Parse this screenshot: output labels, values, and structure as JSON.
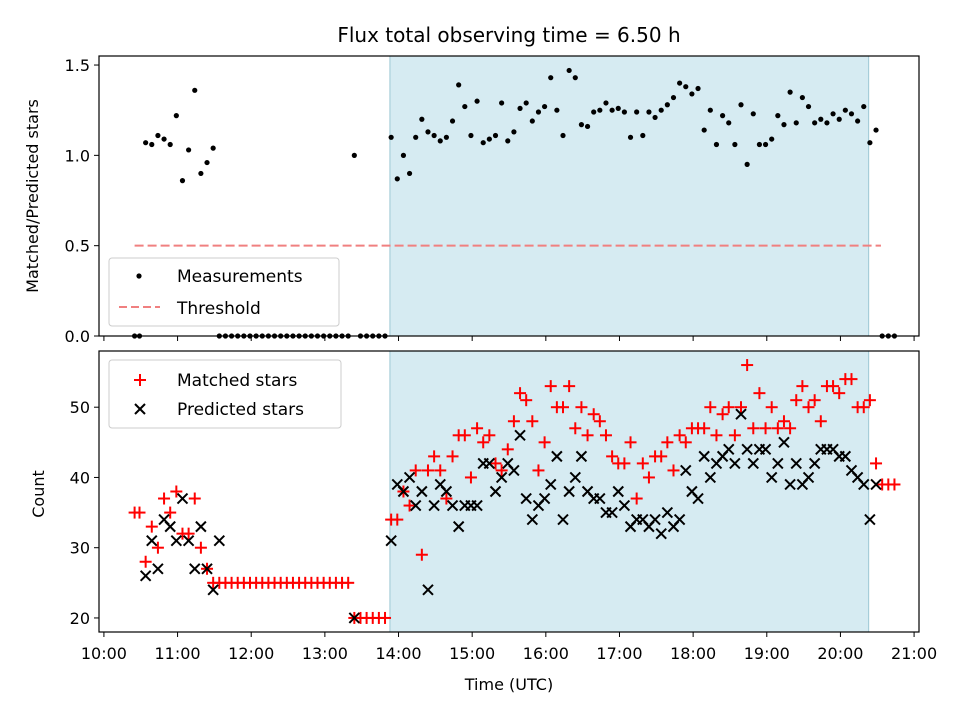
{
  "chart_data": [
    {
      "type": "scatter",
      "title": "Flux total observing time = 6.50 h",
      "ylabel": "Matched/Predicted stars",
      "xlabel": "",
      "xlim": [
        "10:00",
        "21:00"
      ],
      "ylim": [
        0,
        1.55
      ],
      "yticks": [
        "0.0",
        "0.5",
        "1.0",
        "1.5"
      ],
      "ytick_values": [
        0,
        0.5,
        1.0,
        1.5
      ],
      "shaded_region": [
        "13:53",
        "20:23"
      ],
      "legend": {
        "placement": "lower-left",
        "entries": [
          "Measurements",
          "Threshold"
        ]
      },
      "threshold": {
        "name": "Threshold",
        "y": 0.5,
        "x_range": [
          "10:25",
          "20:33"
        ],
        "color": "#f08080"
      },
      "series": [
        {
          "name": "Measurements",
          "color": "#000000",
          "x": [
            "10:25",
            "10:29",
            "10:34",
            "10:39",
            "10:44",
            "10:49",
            "10:54",
            "10:59",
            "11:04",
            "11:09",
            "11:14",
            "11:19",
            "11:24",
            "11:29",
            "11:34",
            "11:39",
            "11:44",
            "11:49",
            "11:54",
            "11:59",
            "12:04",
            "12:09",
            "12:14",
            "12:19",
            "12:24",
            "12:29",
            "12:34",
            "12:39",
            "12:44",
            "12:49",
            "12:54",
            "12:59",
            "13:04",
            "13:09",
            "13:14",
            "13:19",
            "13:24",
            "13:29",
            "13:34",
            "13:39",
            "13:44",
            "13:49",
            "13:54",
            "13:59",
            "14:04",
            "14:09",
            "14:14",
            "14:19",
            "14:24",
            "14:29",
            "14:34",
            "14:39",
            "14:44",
            "14:49",
            "14:54",
            "14:59",
            "15:04",
            "15:09",
            "15:14",
            "15:19",
            "15:24",
            "15:29",
            "15:34",
            "15:39",
            "15:44",
            "15:49",
            "15:54",
            "15:59",
            "16:04",
            "16:09",
            "16:14",
            "16:19",
            "16:24",
            "16:29",
            "16:34",
            "16:39",
            "16:44",
            "16:49",
            "16:54",
            "16:59",
            "17:04",
            "17:09",
            "17:14",
            "17:19",
            "17:24",
            "17:29",
            "17:34",
            "17:39",
            "17:44",
            "17:49",
            "17:54",
            "17:59",
            "18:04",
            "18:09",
            "18:14",
            "18:19",
            "18:24",
            "18:29",
            "18:34",
            "18:39",
            "18:44",
            "18:49",
            "18:54",
            "18:59",
            "19:04",
            "19:09",
            "19:14",
            "19:19",
            "19:24",
            "19:29",
            "19:34",
            "19:39",
            "19:44",
            "19:49",
            "19:54",
            "19:59",
            "20:04",
            "20:09",
            "20:14",
            "20:19",
            "20:24",
            "20:29",
            "20:34",
            "20:39",
            "20:44"
          ],
          "y": [
            0,
            0,
            1.07,
            1.06,
            1.11,
            1.09,
            1.06,
            1.22,
            0.86,
            1.03,
            1.36,
            0.9,
            0.96,
            1.04,
            0,
            0,
            0,
            0,
            0,
            0,
            0,
            0,
            0,
            0,
            0,
            0,
            0,
            0,
            0,
            0,
            0,
            0,
            0,
            0,
            0,
            0,
            1.0,
            0,
            0,
            0,
            0,
            0,
            1.1,
            0.87,
            1.0,
            0.9,
            1.1,
            1.2,
            1.13,
            1.11,
            1.08,
            1.1,
            1.19,
            1.39,
            1.27,
            1.11,
            1.3,
            1.07,
            1.09,
            1.11,
            1.29,
            1.08,
            1.13,
            1.26,
            1.29,
            1.19,
            1.24,
            1.27,
            1.43,
            1.25,
            1.11,
            1.47,
            1.43,
            1.17,
            1.16,
            1.24,
            1.25,
            1.29,
            1.25,
            1.26,
            1.24,
            1.1,
            1.24,
            1.11,
            1.24,
            1.21,
            1.25,
            1.28,
            1.32,
            1.4,
            1.38,
            1.34,
            1.37,
            1.14,
            1.25,
            1.06,
            1.22,
            1.18,
            1.06,
            1.28,
            0.95,
            1.23,
            1.06,
            1.06,
            1.09,
            1.22,
            1.17,
            1.35,
            1.18,
            1.32,
            1.27,
            1.18,
            1.2,
            1.18,
            1.23,
            1.2,
            1.25,
            1.23,
            1.19,
            1.27,
            1.07,
            1.14,
            0,
            0,
            0
          ]
        }
      ]
    },
    {
      "type": "scatter",
      "title": "",
      "ylabel": "Count",
      "xlabel": "Time (UTC)",
      "xlim": [
        "10:00",
        "21:00"
      ],
      "ylim": [
        18,
        58
      ],
      "yticks": [
        "20",
        "30",
        "40",
        "50"
      ],
      "ytick_values": [
        20,
        30,
        40,
        50
      ],
      "xticks": [
        "10:00",
        "11:00",
        "12:00",
        "13:00",
        "14:00",
        "15:00",
        "16:00",
        "17:00",
        "18:00",
        "19:00",
        "20:00",
        "21:00"
      ],
      "shaded_region": [
        "13:53",
        "20:23"
      ],
      "legend": {
        "placement": "upper-left",
        "entries": [
          "Matched stars",
          "Predicted stars"
        ]
      },
      "series": [
        {
          "name": "Matched stars",
          "marker": "plus",
          "color": "#ff0000",
          "x": [
            "10:25",
            "10:29",
            "10:34",
            "10:39",
            "10:44",
            "10:49",
            "10:54",
            "10:59",
            "11:04",
            "11:09",
            "11:14",
            "11:19",
            "11:24",
            "11:29",
            "11:34",
            "11:39",
            "11:44",
            "11:49",
            "11:54",
            "11:59",
            "12:04",
            "12:09",
            "12:14",
            "12:19",
            "12:24",
            "12:29",
            "12:34",
            "12:39",
            "12:44",
            "12:49",
            "12:54",
            "12:59",
            "13:04",
            "13:09",
            "13:14",
            "13:19",
            "13:24",
            "13:29",
            "13:34",
            "13:39",
            "13:44",
            "13:49",
            "13:54",
            "13:59",
            "14:04",
            "14:09",
            "14:14",
            "14:19",
            "14:24",
            "14:29",
            "14:34",
            "14:39",
            "14:44",
            "14:49",
            "14:54",
            "14:59",
            "15:04",
            "15:09",
            "15:14",
            "15:19",
            "15:24",
            "15:29",
            "15:34",
            "15:39",
            "15:44",
            "15:49",
            "15:54",
            "15:59",
            "16:04",
            "16:09",
            "16:14",
            "16:19",
            "16:24",
            "16:29",
            "16:34",
            "16:39",
            "16:44",
            "16:49",
            "16:54",
            "16:59",
            "17:04",
            "17:09",
            "17:14",
            "17:19",
            "17:24",
            "17:29",
            "17:34",
            "17:39",
            "17:44",
            "17:49",
            "17:54",
            "17:59",
            "18:04",
            "18:09",
            "18:14",
            "18:19",
            "18:24",
            "18:29",
            "18:34",
            "18:39",
            "18:44",
            "18:49",
            "18:54",
            "18:59",
            "19:04",
            "19:09",
            "19:14",
            "19:19",
            "19:24",
            "19:29",
            "19:34",
            "19:39",
            "19:44",
            "19:49",
            "19:54",
            "19:59",
            "20:04",
            "20:09",
            "20:14",
            "20:19",
            "20:24",
            "20:29",
            "20:34",
            "20:39",
            "20:44"
          ],
          "y": [
            35,
            35,
            28,
            33,
            30,
            37,
            35,
            38,
            32,
            32,
            37,
            30,
            27,
            25,
            25,
            25,
            25,
            25,
            25,
            25,
            25,
            25,
            25,
            25,
            25,
            25,
            25,
            25,
            25,
            25,
            25,
            25,
            25,
            25,
            25,
            25,
            20,
            20,
            20,
            20,
            20,
            20,
            34,
            34,
            38,
            36,
            41,
            29,
            41,
            43,
            41,
            37,
            43,
            46,
            46,
            40,
            47,
            45,
            46,
            42,
            41,
            44,
            48,
            52,
            51,
            48,
            41,
            45,
            53,
            50,
            50,
            53,
            47,
            50,
            46,
            49,
            48,
            46,
            43,
            42,
            42,
            45,
            37,
            42,
            40,
            43,
            43,
            45,
            41,
            46,
            45,
            47,
            47,
            47,
            50,
            46,
            49,
            50,
            46,
            50,
            56,
            47,
            52,
            47,
            50,
            47,
            48,
            47,
            51,
            53,
            50,
            51,
            48,
            53,
            53,
            52,
            54,
            54,
            50,
            50,
            51,
            42,
            39,
            39,
            39
          ]
        },
        {
          "name": "Predicted stars",
          "marker": "x",
          "color": "#000000",
          "x": [
            "10:34",
            "10:39",
            "10:44",
            "10:49",
            "10:54",
            "10:59",
            "11:04",
            "11:09",
            "11:14",
            "11:19",
            "11:24",
            "11:29",
            "11:34",
            "13:24",
            "13:54",
            "13:59",
            "14:04",
            "14:09",
            "14:14",
            "14:19",
            "14:24",
            "14:29",
            "14:34",
            "14:39",
            "14:44",
            "14:49",
            "14:54",
            "14:59",
            "15:04",
            "15:09",
            "15:14",
            "15:19",
            "15:24",
            "15:29",
            "15:34",
            "15:39",
            "15:44",
            "15:49",
            "15:54",
            "15:59",
            "16:04",
            "16:09",
            "16:14",
            "16:19",
            "16:24",
            "16:29",
            "16:34",
            "16:39",
            "16:44",
            "16:49",
            "16:54",
            "16:59",
            "17:04",
            "17:09",
            "17:14",
            "17:19",
            "17:24",
            "17:29",
            "17:34",
            "17:39",
            "17:44",
            "17:49",
            "17:54",
            "17:59",
            "18:04",
            "18:09",
            "18:14",
            "18:19",
            "18:24",
            "18:29",
            "18:34",
            "18:39",
            "18:44",
            "18:49",
            "18:54",
            "18:59",
            "19:04",
            "19:09",
            "19:14",
            "19:19",
            "19:24",
            "19:29",
            "19:34",
            "19:39",
            "19:44",
            "19:49",
            "19:54",
            "19:59",
            "20:04",
            "20:09",
            "20:14",
            "20:19",
            "20:24",
            "20:29"
          ],
          "y": [
            26,
            31,
            27,
            34,
            33,
            31,
            37,
            31,
            27,
            33,
            27,
            24,
            31,
            20,
            31,
            39,
            38,
            40,
            36,
            38,
            24,
            36,
            39,
            38,
            36,
            33,
            36,
            36,
            36,
            42,
            42,
            38,
            40,
            42,
            41,
            46,
            37,
            34,
            36,
            37,
            39,
            43,
            34,
            38,
            40,
            43,
            38,
            37,
            37,
            35,
            35,
            38,
            36,
            33,
            34,
            34,
            33,
            34,
            32,
            35,
            33,
            34,
            41,
            38,
            37,
            43,
            40,
            42,
            43,
            44,
            42,
            49,
            44,
            42,
            44,
            44,
            40,
            42,
            45,
            39,
            42,
            39,
            40,
            42,
            44,
            44,
            44,
            43,
            43,
            41,
            40,
            39,
            34,
            39
          ]
        }
      ]
    }
  ]
}
